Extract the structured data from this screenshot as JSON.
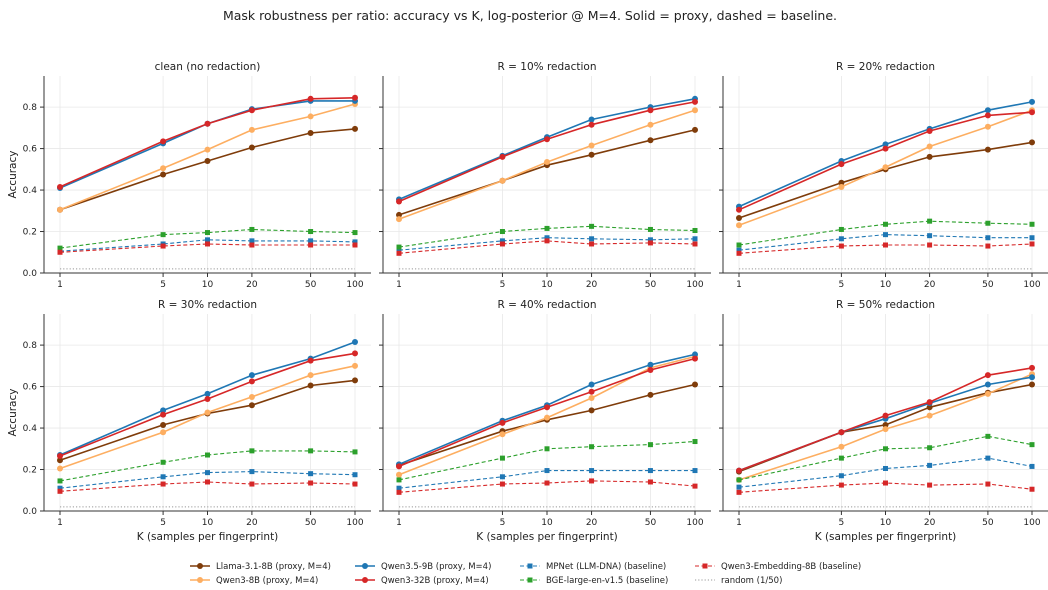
{
  "figure": {
    "title": "Mask robustness per ratio: accuracy vs K, log-posterior @ M=4. Solid = proxy, dashed = baseline."
  },
  "colors": {
    "llama": "#7f3c0a",
    "qwen3_8b": "#fdae61",
    "qwen35_9b": "#1f77b4",
    "qwen3_32b": "#d62728",
    "mpnet": "#1f77b4",
    "bge": "#2ca02c",
    "qwen3_emb": "#d62728",
    "random": "#999999"
  },
  "chart_data": [
    {
      "type": "line",
      "title": "clean (no redaction)",
      "xlabel": "",
      "ylabel": "Accuracy",
      "x": [
        1,
        5,
        10,
        20,
        50,
        100
      ],
      "xscale": "log",
      "xticks": [
        "1",
        "5",
        "10",
        "20",
        "50",
        "100"
      ],
      "ylim": [
        0,
        0.95
      ],
      "yticks": [
        "0.0",
        "0.2",
        "0.4",
        "0.6",
        "0.8"
      ],
      "grid": true,
      "series": [
        {
          "name": "Llama-3.1-8B (proxy, M=4)",
          "style": "solid",
          "color": "#7f3c0a",
          "values": [
            0.305,
            0.475,
            0.54,
            0.605,
            0.675,
            0.695
          ]
        },
        {
          "name": "Qwen3-8B (proxy, M=4)",
          "style": "solid",
          "color": "#fdae61",
          "values": [
            0.305,
            0.505,
            0.595,
            0.69,
            0.755,
            0.815
          ]
        },
        {
          "name": "Qwen3.5-9B (proxy, M=4)",
          "style": "solid",
          "color": "#1f77b4",
          "values": [
            0.41,
            0.625,
            0.72,
            0.79,
            0.83,
            0.83
          ]
        },
        {
          "name": "Qwen3-32B (proxy, M=4)",
          "style": "solid",
          "color": "#d62728",
          "values": [
            0.415,
            0.635,
            0.72,
            0.785,
            0.84,
            0.845
          ]
        },
        {
          "name": "MPNet (LLM-DNA) (baseline)",
          "style": "dashed",
          "color": "#1f77b4",
          "values": [
            0.105,
            0.14,
            0.16,
            0.155,
            0.155,
            0.15
          ]
        },
        {
          "name": "BGE-large-en-v1.5 (baseline)",
          "style": "dashed",
          "color": "#2ca02c",
          "values": [
            0.12,
            0.185,
            0.195,
            0.21,
            0.2,
            0.195
          ]
        },
        {
          "name": "Qwen3-Embedding-8B (baseline)",
          "style": "dashed",
          "color": "#d62728",
          "values": [
            0.1,
            0.13,
            0.14,
            0.135,
            0.135,
            0.135
          ]
        },
        {
          "name": "random (1/50)",
          "style": "dotted",
          "color": "#999999",
          "values": [
            0.02,
            0.02,
            0.02,
            0.02,
            0.02,
            0.02
          ]
        }
      ]
    },
    {
      "type": "line",
      "title": "R = 10% redaction",
      "xlabel": "",
      "ylabel": "",
      "x": [
        1,
        5,
        10,
        20,
        50,
        100
      ],
      "xscale": "log",
      "xticks": [
        "1",
        "5",
        "10",
        "20",
        "50",
        "100"
      ],
      "ylim": [
        0,
        0.95
      ],
      "yticks": [
        "0.0",
        "0.2",
        "0.4",
        "0.6",
        "0.8"
      ],
      "grid": true,
      "series": [
        {
          "name": "Llama-3.1-8B (proxy, M=4)",
          "style": "solid",
          "color": "#7f3c0a",
          "values": [
            0.28,
            0.445,
            0.52,
            0.57,
            0.64,
            0.69
          ]
        },
        {
          "name": "Qwen3-8B (proxy, M=4)",
          "style": "solid",
          "color": "#fdae61",
          "values": [
            0.26,
            0.445,
            0.535,
            0.615,
            0.715,
            0.785
          ]
        },
        {
          "name": "Qwen3.5-9B (proxy, M=4)",
          "style": "solid",
          "color": "#1f77b4",
          "values": [
            0.355,
            0.565,
            0.655,
            0.74,
            0.8,
            0.84
          ]
        },
        {
          "name": "Qwen3-32B (proxy, M=4)",
          "style": "solid",
          "color": "#d62728",
          "values": [
            0.345,
            0.56,
            0.645,
            0.715,
            0.785,
            0.825
          ]
        },
        {
          "name": "MPNet (LLM-DNA) (baseline)",
          "style": "dashed",
          "color": "#1f77b4",
          "values": [
            0.11,
            0.155,
            0.17,
            0.165,
            0.16,
            0.165
          ]
        },
        {
          "name": "BGE-large-en-v1.5 (baseline)",
          "style": "dashed",
          "color": "#2ca02c",
          "values": [
            0.125,
            0.2,
            0.215,
            0.225,
            0.21,
            0.205
          ]
        },
        {
          "name": "Qwen3-Embedding-8B (baseline)",
          "style": "dashed",
          "color": "#d62728",
          "values": [
            0.095,
            0.14,
            0.155,
            0.14,
            0.145,
            0.14
          ]
        },
        {
          "name": "random (1/50)",
          "style": "dotted",
          "color": "#999999",
          "values": [
            0.02,
            0.02,
            0.02,
            0.02,
            0.02,
            0.02
          ]
        }
      ]
    },
    {
      "type": "line",
      "title": "R = 20% redaction",
      "xlabel": "",
      "ylabel": "",
      "x": [
        1,
        5,
        10,
        20,
        50,
        100
      ],
      "xscale": "log",
      "xticks": [
        "1",
        "5",
        "10",
        "20",
        "50",
        "100"
      ],
      "ylim": [
        0,
        0.95
      ],
      "yticks": [
        "0.0",
        "0.2",
        "0.4",
        "0.6",
        "0.8"
      ],
      "grid": true,
      "series": [
        {
          "name": "Llama-3.1-8B (proxy, M=4)",
          "style": "solid",
          "color": "#7f3c0a",
          "values": [
            0.265,
            0.435,
            0.5,
            0.56,
            0.595,
            0.63
          ]
        },
        {
          "name": "Qwen3-8B (proxy, M=4)",
          "style": "solid",
          "color": "#fdae61",
          "values": [
            0.23,
            0.415,
            0.51,
            0.61,
            0.705,
            0.785
          ]
        },
        {
          "name": "Qwen3.5-9B (proxy, M=4)",
          "style": "solid",
          "color": "#1f77b4",
          "values": [
            0.32,
            0.54,
            0.62,
            0.695,
            0.785,
            0.825
          ]
        },
        {
          "name": "Qwen3-32B (proxy, M=4)",
          "style": "solid",
          "color": "#d62728",
          "values": [
            0.305,
            0.525,
            0.6,
            0.685,
            0.76,
            0.775
          ]
        },
        {
          "name": "MPNet (LLM-DNA) (baseline)",
          "style": "dashed",
          "color": "#1f77b4",
          "values": [
            0.11,
            0.165,
            0.185,
            0.18,
            0.17,
            0.17
          ]
        },
        {
          "name": "BGE-large-en-v1.5 (baseline)",
          "style": "dashed",
          "color": "#2ca02c",
          "values": [
            0.135,
            0.21,
            0.235,
            0.25,
            0.24,
            0.235
          ]
        },
        {
          "name": "Qwen3-Embedding-8B (baseline)",
          "style": "dashed",
          "color": "#d62728",
          "values": [
            0.095,
            0.13,
            0.135,
            0.135,
            0.13,
            0.14
          ]
        },
        {
          "name": "random (1/50)",
          "style": "dotted",
          "color": "#999999",
          "values": [
            0.02,
            0.02,
            0.02,
            0.02,
            0.02,
            0.02
          ]
        }
      ]
    },
    {
      "type": "line",
      "title": "R = 30% redaction",
      "xlabel": "K (samples per fingerprint)",
      "ylabel": "Accuracy",
      "x": [
        1,
        5,
        10,
        20,
        50,
        100
      ],
      "xscale": "log",
      "xticks": [
        "1",
        "5",
        "10",
        "20",
        "50",
        "100"
      ],
      "ylim": [
        0,
        0.95
      ],
      "yticks": [
        "0.0",
        "0.2",
        "0.4",
        "0.6",
        "0.8"
      ],
      "grid": true,
      "series": [
        {
          "name": "Llama-3.1-8B (proxy, M=4)",
          "style": "solid",
          "color": "#7f3c0a",
          "values": [
            0.245,
            0.415,
            0.47,
            0.51,
            0.605,
            0.63
          ]
        },
        {
          "name": "Qwen3-8B (proxy, M=4)",
          "style": "solid",
          "color": "#fdae61",
          "values": [
            0.205,
            0.38,
            0.475,
            0.55,
            0.655,
            0.7
          ]
        },
        {
          "name": "Qwen3.5-9B (proxy, M=4)",
          "style": "solid",
          "color": "#1f77b4",
          "values": [
            0.27,
            0.485,
            0.565,
            0.655,
            0.735,
            0.815
          ]
        },
        {
          "name": "Qwen3-32B (proxy, M=4)",
          "style": "solid",
          "color": "#d62728",
          "values": [
            0.265,
            0.465,
            0.54,
            0.625,
            0.725,
            0.76
          ]
        },
        {
          "name": "MPNet (LLM-DNA) (baseline)",
          "style": "dashed",
          "color": "#1f77b4",
          "values": [
            0.11,
            0.165,
            0.185,
            0.19,
            0.18,
            0.175
          ]
        },
        {
          "name": "BGE-large-en-v1.5 (baseline)",
          "style": "dashed",
          "color": "#2ca02c",
          "values": [
            0.145,
            0.235,
            0.27,
            0.29,
            0.29,
            0.285
          ]
        },
        {
          "name": "Qwen3-Embedding-8B (baseline)",
          "style": "dashed",
          "color": "#d62728",
          "values": [
            0.095,
            0.13,
            0.14,
            0.13,
            0.135,
            0.13
          ]
        },
        {
          "name": "random (1/50)",
          "style": "dotted",
          "color": "#999999",
          "values": [
            0.02,
            0.02,
            0.02,
            0.02,
            0.02,
            0.02
          ]
        }
      ]
    },
    {
      "type": "line",
      "title": "R = 40% redaction",
      "xlabel": "K (samples per fingerprint)",
      "ylabel": "",
      "x": [
        1,
        5,
        10,
        20,
        50,
        100
      ],
      "xscale": "log",
      "xticks": [
        "1",
        "5",
        "10",
        "20",
        "50",
        "100"
      ],
      "ylim": [
        0,
        0.95
      ],
      "yticks": [
        "0.0",
        "0.2",
        "0.4",
        "0.6",
        "0.8"
      ],
      "grid": true,
      "series": [
        {
          "name": "Llama-3.1-8B (proxy, M=4)",
          "style": "solid",
          "color": "#7f3c0a",
          "values": [
            0.22,
            0.385,
            0.44,
            0.485,
            0.56,
            0.61
          ]
        },
        {
          "name": "Qwen3-8B (proxy, M=4)",
          "style": "solid",
          "color": "#fdae61",
          "values": [
            0.175,
            0.37,
            0.45,
            0.545,
            0.69,
            0.745
          ]
        },
        {
          "name": "Qwen3.5-9B (proxy, M=4)",
          "style": "solid",
          "color": "#1f77b4",
          "values": [
            0.225,
            0.435,
            0.51,
            0.61,
            0.705,
            0.755
          ]
        },
        {
          "name": "Qwen3-32B (proxy, M=4)",
          "style": "solid",
          "color": "#d62728",
          "values": [
            0.215,
            0.425,
            0.5,
            0.575,
            0.68,
            0.735
          ]
        },
        {
          "name": "MPNet (LLM-DNA) (baseline)",
          "style": "dashed",
          "color": "#1f77b4",
          "values": [
            0.11,
            0.165,
            0.195,
            0.195,
            0.195,
            0.195
          ]
        },
        {
          "name": "BGE-large-en-v1.5 (baseline)",
          "style": "dashed",
          "color": "#2ca02c",
          "values": [
            0.15,
            0.255,
            0.3,
            0.31,
            0.32,
            0.335
          ]
        },
        {
          "name": "Qwen3-Embedding-8B (baseline)",
          "style": "dashed",
          "color": "#d62728",
          "values": [
            0.09,
            0.13,
            0.135,
            0.145,
            0.14,
            0.12
          ]
        },
        {
          "name": "random (1/50)",
          "style": "dotted",
          "color": "#999999",
          "values": [
            0.02,
            0.02,
            0.02,
            0.02,
            0.02,
            0.02
          ]
        }
      ]
    },
    {
      "type": "line",
      "title": "R = 50% redaction",
      "xlabel": "K (samples per fingerprint)",
      "ylabel": "",
      "x": [
        1,
        5,
        10,
        20,
        50,
        100
      ],
      "xscale": "log",
      "xticks": [
        "1",
        "5",
        "10",
        "20",
        "50",
        "100"
      ],
      "ylim": [
        0,
        0.95
      ],
      "yticks": [
        "0.0",
        "0.2",
        "0.4",
        "0.6",
        "0.8"
      ],
      "grid": true,
      "series": [
        {
          "name": "Llama-3.1-8B (proxy, M=4)",
          "style": "solid",
          "color": "#7f3c0a",
          "values": [
            0.19,
            0.38,
            0.415,
            0.5,
            0.57,
            0.61
          ]
        },
        {
          "name": "Qwen3-8B (proxy, M=4)",
          "style": "solid",
          "color": "#fdae61",
          "values": [
            0.15,
            0.31,
            0.395,
            0.46,
            0.565,
            0.66
          ]
        },
        {
          "name": "Qwen3.5-9B (proxy, M=4)",
          "style": "solid",
          "color": "#1f77b4",
          "values": [
            0.195,
            0.38,
            0.445,
            0.52,
            0.61,
            0.645
          ]
        },
        {
          "name": "Qwen3-32B (proxy, M=4)",
          "style": "solid",
          "color": "#d62728",
          "values": [
            0.195,
            0.38,
            0.46,
            0.525,
            0.655,
            0.69
          ]
        },
        {
          "name": "MPNet (LLM-DNA) (baseline)",
          "style": "dashed",
          "color": "#1f77b4",
          "values": [
            0.115,
            0.17,
            0.205,
            0.22,
            0.255,
            0.215
          ]
        },
        {
          "name": "BGE-large-en-v1.5 (baseline)",
          "style": "dashed",
          "color": "#2ca02c",
          "values": [
            0.15,
            0.255,
            0.3,
            0.305,
            0.36,
            0.32
          ]
        },
        {
          "name": "Qwen3-Embedding-8B (baseline)",
          "style": "dashed",
          "color": "#d62728",
          "values": [
            0.09,
            0.125,
            0.135,
            0.125,
            0.13,
            0.105
          ]
        },
        {
          "name": "random (1/50)",
          "style": "dotted",
          "color": "#999999",
          "values": [
            0.02,
            0.02,
            0.02,
            0.02,
            0.02,
            0.02
          ]
        }
      ]
    }
  ],
  "legend": {
    "placement": "bottom-center",
    "items": [
      {
        "label": "Llama-3.1-8B (proxy, M=4)",
        "color": "#7f3c0a",
        "style": "solid",
        "marker": "circle"
      },
      {
        "label": "Qwen3-8B (proxy, M=4)",
        "color": "#fdae61",
        "style": "solid",
        "marker": "circle"
      },
      {
        "label": "Qwen3.5-9B (proxy, M=4)",
        "color": "#1f77b4",
        "style": "solid",
        "marker": "circle"
      },
      {
        "label": "Qwen3-32B (proxy, M=4)",
        "color": "#d62728",
        "style": "solid",
        "marker": "circle"
      },
      {
        "label": "MPNet (LLM-DNA) (baseline)",
        "color": "#1f77b4",
        "style": "dashed",
        "marker": "square"
      },
      {
        "label": "BGE-large-en-v1.5 (baseline)",
        "color": "#2ca02c",
        "style": "dashed",
        "marker": "square"
      },
      {
        "label": "Qwen3-Embedding-8B (baseline)",
        "color": "#d62728",
        "style": "dashed",
        "marker": "square"
      },
      {
        "label": "random (1/50)",
        "color": "#999999",
        "style": "dotted",
        "marker": "none"
      }
    ]
  }
}
